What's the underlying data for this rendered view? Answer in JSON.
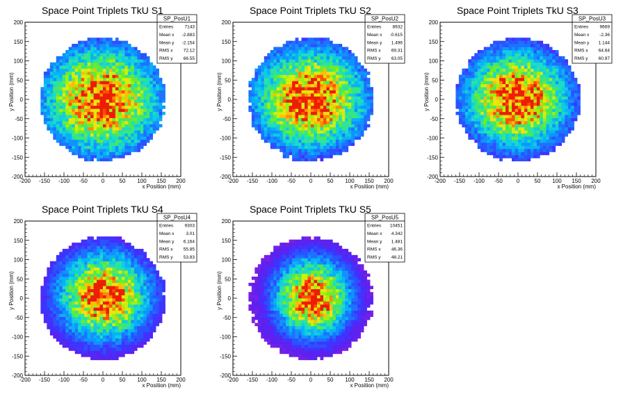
{
  "chart_data": [
    {
      "type": "heatmap",
      "title": "Space Point Triplets TkU S1",
      "xlabel": "x Position (mm)",
      "ylabel": "y Position (mm)",
      "xlim": [
        -200,
        200
      ],
      "ylim": [
        -200,
        200
      ],
      "xticks": [
        -200,
        -150,
        -100,
        -50,
        0,
        50,
        100,
        150,
        200
      ],
      "yticks": [
        -200,
        -150,
        -100,
        -50,
        0,
        50,
        100,
        150,
        200
      ],
      "colormap": "rainbow (violet-blue-cyan-green-yellow-red)",
      "stats": {
        "name": "SP_PosU1",
        "rows": [
          {
            "label": "Entries",
            "value": "7143"
          },
          {
            "label": "Mean x",
            "value": "-2.883"
          },
          {
            "label": "Mean y",
            "value": "-2.154"
          },
          {
            "label": "RMS x",
            "value": "72.12"
          },
          {
            "label": "RMS y",
            "value": "66.55"
          }
        ]
      },
      "distribution": {
        "shape": "disc",
        "radius_mm": 160,
        "mean_x": -2.883,
        "mean_y": -2.154,
        "rms_x": 72.12,
        "rms_y": 66.55
      }
    },
    {
      "type": "heatmap",
      "title": "Space Point Triplets TkU S2",
      "xlabel": "x Position (mm)",
      "ylabel": "y Position (mm)",
      "xlim": [
        -200,
        200
      ],
      "ylim": [
        -200,
        200
      ],
      "xticks": [
        -200,
        -150,
        -100,
        -50,
        0,
        50,
        100,
        150,
        200
      ],
      "yticks": [
        -200,
        -150,
        -100,
        -50,
        0,
        50,
        100,
        150,
        200
      ],
      "colormap": "rainbow (violet-blue-cyan-green-yellow-red)",
      "stats": {
        "name": "SP_PosU2",
        "rows": [
          {
            "label": "Entries",
            "value": "8932"
          },
          {
            "label": "Mean x",
            "value": "-0.615"
          },
          {
            "label": "Mean y",
            "value": "1.496"
          },
          {
            "label": "RMS x",
            "value": "69.31"
          },
          {
            "label": "RMS y",
            "value": "63.05"
          }
        ]
      },
      "distribution": {
        "shape": "disc",
        "radius_mm": 160,
        "mean_x": -0.615,
        "mean_y": 1.496,
        "rms_x": 69.31,
        "rms_y": 63.05
      }
    },
    {
      "type": "heatmap",
      "title": "Space Point Triplets TkU S3",
      "xlabel": "x Position (mm)",
      "ylabel": "y Position (mm)",
      "xlim": [
        -200,
        200
      ],
      "ylim": [
        -200,
        200
      ],
      "xticks": [
        -200,
        -150,
        -100,
        -50,
        0,
        50,
        100,
        150,
        200
      ],
      "yticks": [
        -200,
        -150,
        -100,
        -50,
        0,
        50,
        100,
        150,
        200
      ],
      "colormap": "rainbow (violet-blue-cyan-green-yellow-red)",
      "stats": {
        "name": "SP_PosU3",
        "rows": [
          {
            "label": "Entries",
            "value": "9669"
          },
          {
            "label": "Mean x",
            "value": "-2.36"
          },
          {
            "label": "Mean y",
            "value": "1.144"
          },
          {
            "label": "RMS x",
            "value": "64.64"
          },
          {
            "label": "RMS y",
            "value": "60.97"
          }
        ]
      },
      "distribution": {
        "shape": "disc",
        "radius_mm": 160,
        "mean_x": -2.36,
        "mean_y": 1.144,
        "rms_x": 64.64,
        "rms_y": 60.97
      }
    },
    {
      "type": "heatmap",
      "title": "Space Point Triplets TkU S4",
      "xlabel": "x Position (mm)",
      "ylabel": "y Position (mm)",
      "xlim": [
        -200,
        200
      ],
      "ylim": [
        -200,
        200
      ],
      "xticks": [
        -200,
        -150,
        -100,
        -50,
        0,
        50,
        100,
        150,
        200
      ],
      "yticks": [
        -200,
        -150,
        -100,
        -50,
        0,
        50,
        100,
        150,
        200
      ],
      "colormap": "rainbow (violet-blue-cyan-green-yellow-red)",
      "stats": {
        "name": "SP_PosU4",
        "rows": [
          {
            "label": "Entries",
            "value": "9303"
          },
          {
            "label": "Mean x",
            "value": "3.01"
          },
          {
            "label": "Mean y",
            "value": "6.164"
          },
          {
            "label": "RMS x",
            "value": "55.85"
          },
          {
            "label": "RMS y",
            "value": "53.83"
          }
        ]
      },
      "distribution": {
        "shape": "disc",
        "radius_mm": 160,
        "mean_x": 3.01,
        "mean_y": 6.164,
        "rms_x": 55.85,
        "rms_y": 53.83
      }
    },
    {
      "type": "heatmap",
      "title": "Space Point Triplets TkU S5",
      "xlabel": "x Position (mm)",
      "ylabel": "y Position (mm)",
      "xlim": [
        -200,
        200
      ],
      "ylim": [
        -200,
        200
      ],
      "xticks": [
        -200,
        -150,
        -100,
        -50,
        0,
        50,
        100,
        150,
        200
      ],
      "yticks": [
        -200,
        -150,
        -100,
        -50,
        0,
        50,
        100,
        150,
        200
      ],
      "colormap": "rainbow (violet-blue-cyan-green-yellow-red)",
      "stats": {
        "name": "SP_PosU5",
        "rows": [
          {
            "label": "Entries",
            "value": "10451"
          },
          {
            "label": "Mean x",
            "value": "4.342"
          },
          {
            "label": "Mean y",
            "value": "1.481"
          },
          {
            "label": "RMS x",
            "value": "46.36"
          },
          {
            "label": "RMS y",
            "value": "48.21"
          }
        ]
      },
      "distribution": {
        "shape": "disc",
        "radius_mm": 160,
        "mean_x": 4.342,
        "mean_y": 1.481,
        "rms_x": 46.36,
        "rms_y": 48.21
      }
    }
  ]
}
